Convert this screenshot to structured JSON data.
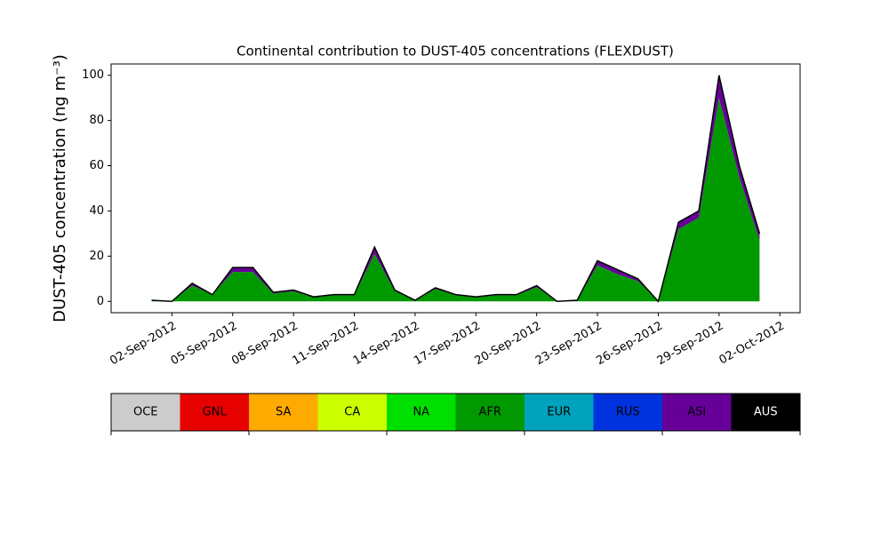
{
  "chart_data": {
    "type": "stacked_area",
    "title": "Continental contribution to DUST-405 concentrations (FLEXDUST)",
    "y_label": "DUST-405 concentration (ng m⁻³)",
    "x": [
      "2012-09-01",
      "2012-09-02",
      "2012-09-03",
      "2012-09-04",
      "2012-09-05",
      "2012-09-06",
      "2012-09-07",
      "2012-09-08",
      "2012-09-09",
      "2012-09-10",
      "2012-09-11",
      "2012-09-12",
      "2012-09-13",
      "2012-09-14",
      "2012-09-15",
      "2012-09-16",
      "2012-09-17",
      "2012-09-18",
      "2012-09-19",
      "2012-09-20",
      "2012-09-21",
      "2012-09-22",
      "2012-09-23",
      "2012-09-24",
      "2012-09-25",
      "2012-09-26",
      "2012-09-27",
      "2012-09-28",
      "2012-09-29",
      "2012-09-30",
      "2012-10-01"
    ],
    "series": [
      {
        "name": "OCE",
        "color": "#cccccc",
        "values": [
          0,
          0,
          0,
          0,
          0,
          0,
          0,
          0,
          0,
          0,
          0,
          0,
          0,
          0,
          0,
          0,
          0,
          0,
          0,
          0,
          0,
          0,
          0,
          0,
          0,
          0,
          0,
          0,
          0,
          0,
          0
        ]
      },
      {
        "name": "GNL",
        "color": "#e60000",
        "values": [
          0,
          0,
          0,
          0,
          0,
          0,
          0,
          0,
          0,
          0,
          0,
          0,
          0,
          0,
          0,
          0,
          0,
          0,
          0,
          0,
          0,
          0,
          0,
          0,
          0,
          0,
          0,
          0,
          0,
          0,
          0
        ]
      },
      {
        "name": "SA",
        "color": "#ffaa00",
        "values": [
          0,
          0,
          0,
          0,
          0,
          0,
          0,
          0,
          0,
          0,
          0,
          0,
          0,
          0,
          0,
          0,
          0,
          0,
          0,
          0,
          0,
          0,
          0,
          0,
          0,
          0,
          0,
          0,
          0,
          0,
          0
        ]
      },
      {
        "name": "CA",
        "color": "#ccff00",
        "values": [
          0,
          0,
          0,
          0,
          0,
          0,
          0,
          0,
          0,
          0,
          0,
          0,
          0,
          0,
          0,
          0,
          0,
          0,
          0,
          0,
          0,
          0,
          0,
          0,
          0,
          0,
          0,
          0,
          0,
          0,
          0
        ]
      },
      {
        "name": "NA",
        "color": "#00e000",
        "values": [
          0,
          0,
          0,
          0,
          0,
          0,
          0,
          0,
          0,
          0,
          0,
          0,
          0,
          0,
          0,
          0,
          0,
          0,
          0,
          0,
          0,
          0,
          0,
          0,
          0,
          0,
          0,
          0,
          0,
          0,
          0
        ]
      },
      {
        "name": "AFR",
        "color": "#009900",
        "values": [
          0.5,
          0,
          7,
          3,
          13,
          13,
          3.5,
          4.5,
          1.8,
          2.7,
          2.7,
          21,
          4.5,
          0.4,
          5.5,
          2.7,
          1.8,
          2.7,
          2.7,
          6.3,
          0,
          0.4,
          16,
          12,
          9,
          0,
          32,
          37,
          90,
          55,
          27
        ]
      },
      {
        "name": "EUR",
        "color": "#00a3bb",
        "values": [
          0,
          0,
          0,
          0,
          0,
          0,
          0,
          0,
          0,
          0,
          0,
          0,
          0,
          0,
          0,
          0,
          0,
          0,
          0,
          0,
          0,
          0,
          0,
          0,
          0,
          0,
          0,
          0,
          0,
          0,
          0
        ]
      },
      {
        "name": "RUS",
        "color": "#0033dd",
        "values": [
          0,
          0,
          0,
          0,
          0,
          0,
          0,
          0,
          0,
          0,
          0,
          0,
          0,
          0,
          0,
          0,
          0,
          0,
          0,
          0,
          0,
          0,
          0,
          0,
          0,
          0,
          0,
          0,
          0,
          0,
          0
        ]
      },
      {
        "name": "ASI",
        "color": "#660099",
        "values": [
          0,
          0,
          1,
          0,
          2,
          2,
          0.5,
          0.5,
          0.2,
          0.3,
          0.3,
          3,
          0.5,
          0.1,
          0.5,
          0.3,
          0.2,
          0.3,
          0.3,
          0.7,
          0,
          0.1,
          2,
          2,
          1,
          0,
          3,
          3,
          10,
          5,
          3
        ]
      },
      {
        "name": "AUS",
        "color": "#000000",
        "values": [
          0,
          0,
          0,
          0,
          0,
          0,
          0,
          0,
          0,
          0,
          0,
          0,
          0,
          0,
          0,
          0,
          0,
          0,
          0,
          0,
          0,
          0,
          0,
          0,
          0,
          0,
          0,
          0,
          0,
          0,
          0
        ]
      }
    ],
    "xlim": [
      "2012-08-30",
      "2012-10-03"
    ],
    "xticks": [
      {
        "value": "2012-09-02",
        "label": "02-Sep-2012"
      },
      {
        "value": "2012-09-05",
        "label": "05-Sep-2012"
      },
      {
        "value": "2012-09-08",
        "label": "08-Sep-2012"
      },
      {
        "value": "2012-09-11",
        "label": "11-Sep-2012"
      },
      {
        "value": "2012-09-14",
        "label": "14-Sep-2012"
      },
      {
        "value": "2012-09-17",
        "label": "17-Sep-2012"
      },
      {
        "value": "2012-09-20",
        "label": "20-Sep-2012"
      },
      {
        "value": "2012-09-23",
        "label": "23-Sep-2012"
      },
      {
        "value": "2012-09-26",
        "label": "26-Sep-2012"
      },
      {
        "value": "2012-09-29",
        "label": "29-Sep-2012"
      },
      {
        "value": "2012-10-02",
        "label": "02-Oct-2012"
      }
    ],
    "ylim": [
      -5,
      105
    ],
    "yticks": [
      0,
      20,
      40,
      60,
      80,
      100
    ]
  }
}
